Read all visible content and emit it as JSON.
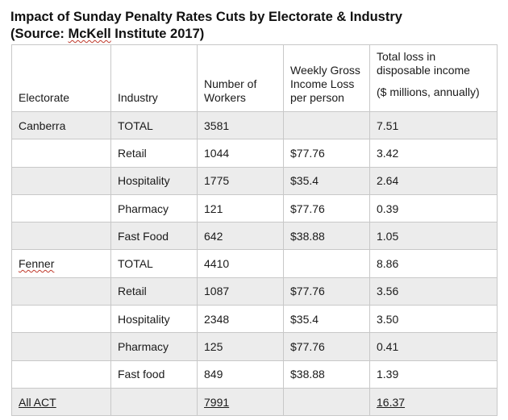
{
  "title": {
    "line1": "Impact of Sunday Penalty Rates Cuts by Electorate & Industry",
    "line2_prefix": "(Source: ",
    "line2_source": "McKell",
    "line2_suffix": " Institute 2017)"
  },
  "table": {
    "headers": {
      "electorate": "Electorate",
      "industry": "Industry",
      "workers": "Number of Workers",
      "weekly_loss": "Weekly Gross Income Loss per person",
      "total_loss": "Total loss in disposable income",
      "total_loss_unit": "($ millions, annually)"
    },
    "rows": [
      {
        "electorate": "Canberra",
        "industry": "TOTAL",
        "workers": "3581",
        "weekly_loss": "",
        "total_loss": "7.51"
      },
      {
        "electorate": "",
        "industry": "Retail",
        "workers": "1044",
        "weekly_loss": "$77.76",
        "total_loss": "3.42"
      },
      {
        "electorate": "",
        "industry": "Hospitality",
        "workers": "1775",
        "weekly_loss": "$35.4",
        "total_loss": "2.64"
      },
      {
        "electorate": "",
        "industry": "Pharmacy",
        "workers": "121",
        "weekly_loss": "$77.76",
        "total_loss": "0.39"
      },
      {
        "electorate": "",
        "industry": "Fast Food",
        "workers": "642",
        "weekly_loss": "$38.88",
        "total_loss": "1.05"
      },
      {
        "electorate": "Fenner",
        "industry": "TOTAL",
        "workers": "4410",
        "weekly_loss": "",
        "total_loss": "8.86"
      },
      {
        "electorate": "",
        "industry": "Retail",
        "workers": "1087",
        "weekly_loss": "$77.76",
        "total_loss": "3.56"
      },
      {
        "electorate": "",
        "industry": "Hospitality",
        "workers": "2348",
        "weekly_loss": "$35.4",
        "total_loss": "3.50"
      },
      {
        "electorate": "",
        "industry": "Pharmacy",
        "workers": "125",
        "weekly_loss": "$77.76",
        "total_loss": "0.41"
      },
      {
        "electorate": "",
        "industry": "Fast food",
        "workers": "849",
        "weekly_loss": "$38.88",
        "total_loss": "1.39"
      },
      {
        "electorate": "All ACT",
        "industry": "",
        "workers": "7991",
        "weekly_loss": "",
        "total_loss": "16.37"
      }
    ]
  },
  "colors": {
    "shaded_row": "#ececec",
    "border": "#c8c8c8",
    "spell_squiggle": "#c0392b"
  }
}
